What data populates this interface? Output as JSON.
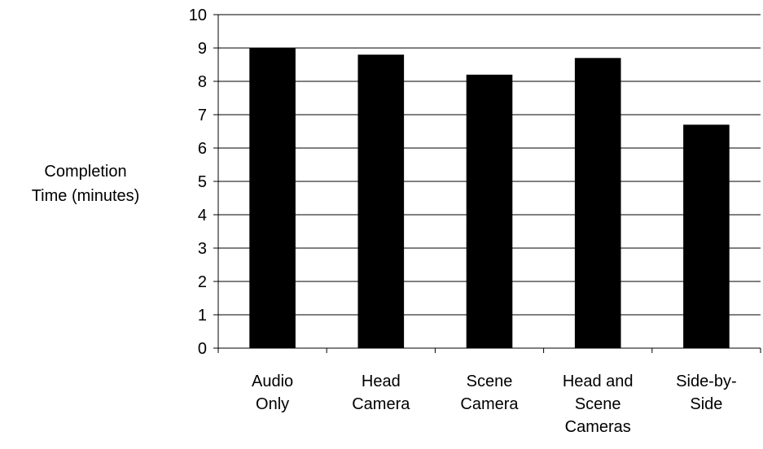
{
  "chart_data": {
    "type": "bar",
    "ylabel": [
      "Completion",
      "Time (minutes)"
    ],
    "categories": [
      [
        "Audio",
        "Only"
      ],
      [
        "Head",
        "Camera"
      ],
      [
        "Scene",
        "Camera"
      ],
      [
        "Head and",
        "Scene",
        "Cameras"
      ],
      [
        "Side-by-",
        "Side"
      ]
    ],
    "values": [
      9.0,
      8.8,
      8.2,
      8.7,
      6.7
    ],
    "ylim": [
      0,
      10
    ],
    "yticks": [
      "0",
      "1",
      "2",
      "3",
      "4",
      "5",
      "6",
      "7",
      "8",
      "9",
      "10"
    ],
    "grid": true,
    "bar_color": "#000000",
    "grid_color": "#000000"
  }
}
